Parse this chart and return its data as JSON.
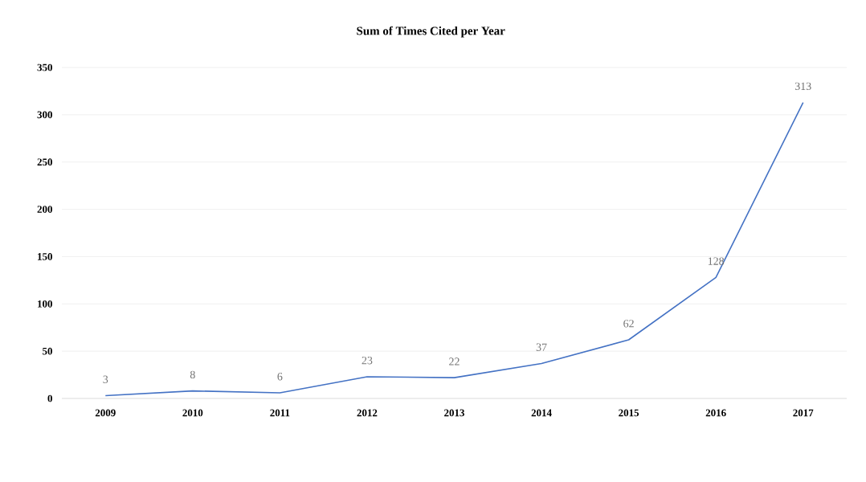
{
  "chart_data": {
    "type": "line",
    "title": "Sum of Times Cited per Year",
    "categories": [
      "2009",
      "2010",
      "2011",
      "2012",
      "2013",
      "2014",
      "2015",
      "2016",
      "2017"
    ],
    "series": [
      {
        "color": "#4472c4",
        "values": [
          3,
          8,
          6,
          23,
          22,
          37,
          62,
          128,
          313
        ]
      }
    ],
    "ylim": [
      0,
      350
    ],
    "yticks": [
      0,
      50,
      100,
      150,
      200,
      250,
      300,
      350
    ],
    "grid": "y",
    "data_labels": true,
    "marker": "none",
    "line_style": "solid"
  }
}
